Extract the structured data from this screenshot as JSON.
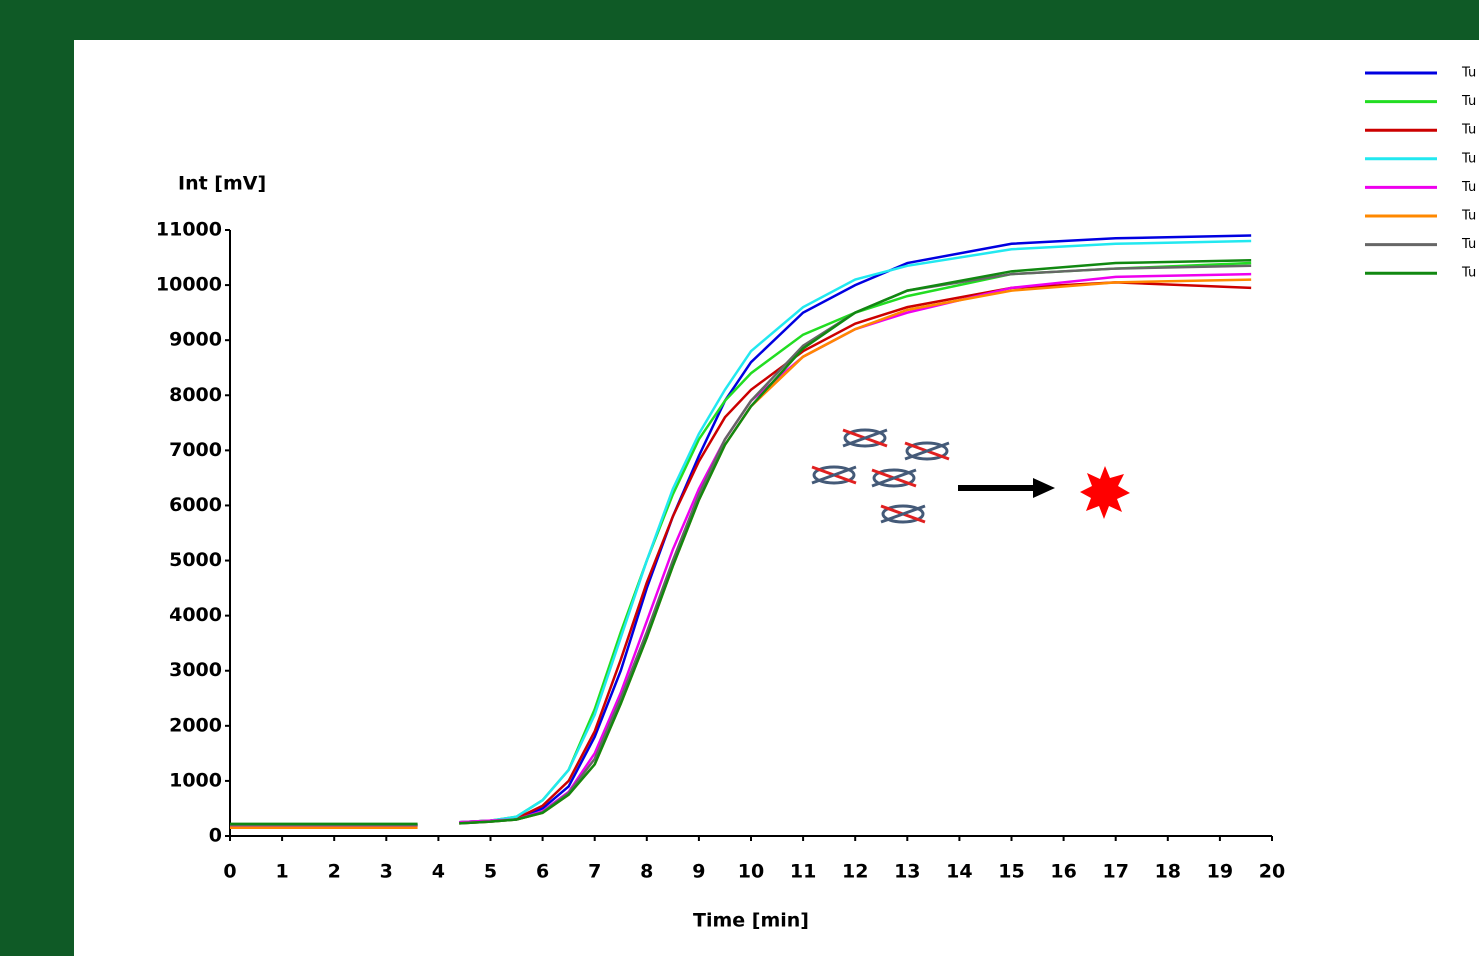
{
  "chart_data": {
    "type": "line",
    "ylabel": "Int [mV]",
    "xlabel": "Time [min]",
    "x": [
      0,
      1,
      2,
      3,
      3.6,
      4,
      4.4,
      5,
      5.5,
      6,
      6.5,
      7,
      7.5,
      8,
      8.5,
      9,
      9.5,
      10,
      11,
      12,
      13,
      15,
      17,
      19.6
    ],
    "series": [
      {
        "name": "Tu",
        "color": "#0000e0",
        "values": [
          200,
          200,
          200,
          200,
          200,
          null,
          250,
          280,
          320,
          500,
          900,
          1800,
          3000,
          4500,
          5800,
          6900,
          7900,
          8600,
          9500,
          10000,
          10400,
          10750,
          10850,
          10900
        ]
      },
      {
        "name": "Tu",
        "color": "#22dd22",
        "values": [
          200,
          200,
          200,
          200,
          200,
          null,
          250,
          280,
          350,
          650,
          1200,
          2300,
          3700,
          5000,
          6200,
          7200,
          7900,
          8400,
          9100,
          9500,
          9800,
          10200,
          10300,
          10400
        ]
      },
      {
        "name": "Tu",
        "color": "#cc0000",
        "values": [
          200,
          200,
          200,
          200,
          200,
          null,
          250,
          280,
          320,
          550,
          1000,
          1900,
          3200,
          4600,
          5800,
          6800,
          7600,
          8100,
          8800,
          9300,
          9600,
          9950,
          10050,
          9950
        ]
      },
      {
        "name": "Tu",
        "color": "#22e8f0",
        "values": [
          200,
          200,
          200,
          200,
          200,
          null,
          250,
          280,
          350,
          650,
          1200,
          2200,
          3600,
          5000,
          6300,
          7300,
          8100,
          8800,
          9600,
          10100,
          10350,
          10650,
          10750,
          10800
        ]
      },
      {
        "name": "Tu",
        "color": "#ee00ee",
        "values": [
          180,
          180,
          180,
          180,
          180,
          null,
          250,
          280,
          300,
          450,
          800,
          1500,
          2600,
          3900,
          5200,
          6300,
          7200,
          7900,
          8700,
          9200,
          9500,
          9950,
          10150,
          10200
        ]
      },
      {
        "name": "Tu",
        "color": "#ff8800",
        "values": [
          150,
          150,
          150,
          150,
          150,
          null,
          230,
          260,
          300,
          420,
          750,
          1300,
          2400,
          3600,
          4900,
          6100,
          7100,
          7800,
          8700,
          9200,
          9550,
          9900,
          10050,
          10100
        ]
      },
      {
        "name": "Tu",
        "color": "#666666",
        "values": [
          200,
          200,
          200,
          200,
          200,
          null,
          230,
          260,
          300,
          430,
          780,
          1400,
          2500,
          3700,
          5000,
          6200,
          7200,
          7900,
          8900,
          9500,
          9900,
          10200,
          10300,
          10350
        ]
      },
      {
        "name": "Tu",
        "color": "#118811",
        "values": [
          220,
          220,
          220,
          220,
          220,
          null,
          230,
          260,
          300,
          420,
          750,
          1300,
          2400,
          3600,
          4900,
          6100,
          7100,
          7800,
          8850,
          9500,
          9900,
          10250,
          10400,
          10450
        ]
      }
    ],
    "xlim": [
      0,
      20
    ],
    "xticks": [
      0,
      1,
      2,
      3,
      4,
      5,
      6,
      7,
      8,
      9,
      10,
      11,
      12,
      13,
      14,
      15,
      16,
      17,
      18,
      19,
      20
    ],
    "ylim": [
      0,
      11000
    ],
    "yticks": [
      0,
      1000,
      2000,
      3000,
      4000,
      5000,
      6000,
      7000,
      8000,
      9000,
      10000,
      11000
    ],
    "grid": false,
    "legend": "upper right"
  }
}
